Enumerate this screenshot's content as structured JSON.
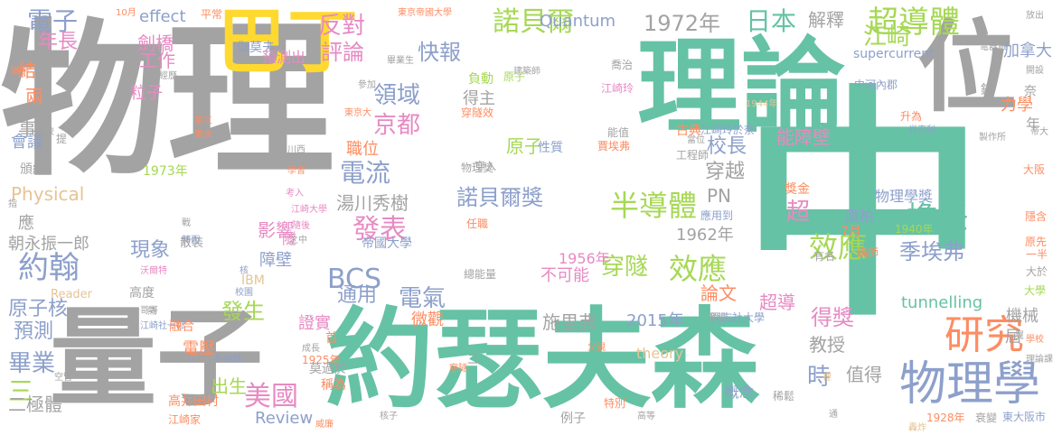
{
  "palette": {
    "gray": "#a3a3a3",
    "green": "#66c2a5",
    "orange": "#fc8d62",
    "blue": "#8da0cb",
    "pink": "#e78ac3",
    "lime": "#a6d854",
    "yellow": "#ffd92f",
    "tan": "#e5c494"
  },
  "words": [
    {
      "text": "物理",
      "color": "gray"
    },
    {
      "text": "中",
      "color": "green"
    },
    {
      "text": "約瑟夫森",
      "color": "green"
    },
    {
      "text": "理論",
      "color": "green"
    },
    {
      "text": "量子",
      "color": "gray"
    },
    {
      "text": "位",
      "color": "gray"
    },
    {
      "text": "巴丁",
      "color": "yellow"
    },
    {
      "text": "物理學",
      "color": "blue"
    },
    {
      "text": "研究",
      "color": "orange"
    },
    {
      "text": "超導體",
      "color": "lime"
    },
    {
      "text": "江崎",
      "color": "lime"
    },
    {
      "text": "諾貝爾",
      "color": "lime"
    },
    {
      "text": "日本",
      "color": "green"
    },
    {
      "text": "1972年",
      "color": "gray"
    },
    {
      "text": "半導體",
      "color": "lime"
    },
    {
      "text": "擔任",
      "color": "green"
    },
    {
      "text": "效應",
      "color": "lime"
    },
    {
      "text": "效應",
      "color": "lime"
    },
    {
      "text": "穿隧",
      "color": "lime"
    },
    {
      "text": "季埃弗",
      "color": "blue"
    },
    {
      "text": "電子",
      "color": "blue"
    },
    {
      "text": "約翰",
      "color": "blue"
    },
    {
      "text": "發表",
      "color": "pink"
    },
    {
      "text": "BCS",
      "color": "blue"
    },
    {
      "text": "評論",
      "color": "pink"
    },
    {
      "text": "快報",
      "color": "blue"
    },
    {
      "text": "反對",
      "color": "pink"
    },
    {
      "text": "Quantum",
      "color": "blue"
    },
    {
      "text": "解釋",
      "color": "gray"
    },
    {
      "text": "領域",
      "color": "blue"
    },
    {
      "text": "京都",
      "color": "pink"
    },
    {
      "text": "電流",
      "color": "blue"
    },
    {
      "text": "諾貝爾獎",
      "color": "blue"
    },
    {
      "text": "湯川秀樹",
      "color": "gray"
    },
    {
      "text": "校長",
      "color": "blue"
    },
    {
      "text": "穿越",
      "color": "gray"
    },
    {
      "text": "能障壁",
      "color": "pink"
    },
    {
      "text": "職位",
      "color": "orange"
    },
    {
      "text": "超",
      "color": "pink"
    },
    {
      "text": "庫柏",
      "color": "blue"
    },
    {
      "text": "7月",
      "color": "orange"
    },
    {
      "text": "物理學獎",
      "color": "blue"
    },
    {
      "text": "得主",
      "color": "gray"
    },
    {
      "text": "原子",
      "color": "lime"
    },
    {
      "text": "通用",
      "color": "blue"
    },
    {
      "text": "電氣",
      "color": "blue"
    },
    {
      "text": "發生",
      "color": "lime"
    },
    {
      "text": "論文",
      "color": "orange"
    },
    {
      "text": "得獎",
      "color": "pink"
    },
    {
      "text": "教授",
      "color": "gray"
    },
    {
      "text": "超導",
      "color": "pink"
    },
    {
      "text": "美國",
      "color": "pink"
    },
    {
      "text": "時",
      "color": "blue"
    },
    {
      "text": "值得",
      "color": "gray"
    },
    {
      "text": "施里弗",
      "color": "gray"
    },
    {
      "text": "2015年",
      "color": "blue"
    },
    {
      "text": "1962年",
      "color": "gray"
    },
    {
      "text": "1956年",
      "color": "pink"
    },
    {
      "text": "不可能",
      "color": "pink"
    },
    {
      "text": "微觀",
      "color": "orange"
    },
    {
      "text": "現象",
      "color": "blue"
    },
    {
      "text": "影響",
      "color": "pink"
    },
    {
      "text": "障壁",
      "color": "blue"
    },
    {
      "text": "朝永振一郎",
      "color": "gray"
    },
    {
      "text": "原子核",
      "color": "blue"
    },
    {
      "text": "畢業",
      "color": "blue"
    },
    {
      "text": "預測",
      "color": "blue"
    },
    {
      "text": "三",
      "color": "lime"
    },
    {
      "text": "二極體",
      "color": "gray"
    },
    {
      "text": "出生",
      "color": "lime"
    },
    {
      "text": "Review",
      "color": "blue"
    },
    {
      "text": "證實",
      "color": "pink"
    },
    {
      "text": "電壓",
      "color": "orange"
    },
    {
      "text": "年長",
      "color": "pink"
    },
    {
      "text": "結",
      "color": "orange"
    },
    {
      "text": "兩",
      "color": "orange"
    },
    {
      "text": "事",
      "color": "gray"
    },
    {
      "text": "會議",
      "color": "blue"
    },
    {
      "text": "Physical",
      "color": "tan"
    },
    {
      "text": "effect",
      "color": "blue"
    },
    {
      "text": "劍橋",
      "color": "pink"
    },
    {
      "text": "工作",
      "color": "pink"
    },
    {
      "text": "粒子",
      "color": "pink"
    },
    {
      "text": "伽莫夫",
      "color": "blue"
    },
    {
      "text": "預測出",
      "color": "pink"
    },
    {
      "text": "supercurrent",
      "color": "blue"
    },
    {
      "text": "加拿大",
      "color": "blue"
    },
    {
      "text": "力學",
      "color": "orange"
    },
    {
      "text": "tunnelling",
      "color": "green"
    },
    {
      "text": "機械",
      "color": "gray"
    },
    {
      "text": "屆",
      "color": "gray"
    },
    {
      "text": "PN",
      "color": "gray"
    },
    {
      "text": "theory",
      "color": "tan"
    },
    {
      "text": "應",
      "color": "gray"
    },
    {
      "text": "隧",
      "color": "pink"
    },
    {
      "text": "年",
      "color": "gray"
    },
    {
      "text": "IBM",
      "color": "tan"
    },
    {
      "text": "平常",
      "color": "orange"
    },
    {
      "text": "10月",
      "color": "orange"
    },
    {
      "text": "東京帝國大學",
      "color": "orange"
    },
    {
      "text": "放出",
      "color": "gray"
    },
    {
      "text": "鍺",
      "color": "gray"
    },
    {
      "text": "奈",
      "color": "gray"
    },
    {
      "text": "古典",
      "color": "orange"
    },
    {
      "text": "江崎玲於奈",
      "color": "blue"
    },
    {
      "text": "江崎玲",
      "color": "pink"
    },
    {
      "text": "負動",
      "color": "lime"
    },
    {
      "text": "喬治",
      "color": "gray"
    },
    {
      "text": "原子",
      "color": "lime"
    },
    {
      "text": "性質",
      "color": "blue"
    },
    {
      "text": "能值",
      "color": "gray"
    },
    {
      "text": "賈埃弗",
      "color": "orange"
    },
    {
      "text": "穿入",
      "color": "gray"
    },
    {
      "text": "穿隧效",
      "color": "orange"
    },
    {
      "text": "物理獎",
      "color": "gray"
    },
    {
      "text": "工程師",
      "color": "gray"
    },
    {
      "text": "當位",
      "color": "gray"
    },
    {
      "text": "1973年",
      "color": "lime"
    },
    {
      "text": "1940年",
      "color": "lime"
    },
    {
      "text": "1928年",
      "color": "orange"
    },
    {
      "text": "1925年",
      "color": "orange"
    },
    {
      "text": "1944年",
      "color": "tan"
    },
    {
      "text": "提",
      "color": "gray"
    },
    {
      "text": "頒給",
      "color": "gray"
    },
    {
      "text": "Reader",
      "color": "tan"
    },
    {
      "text": "高度",
      "color": "gray"
    },
    {
      "text": "首",
      "color": "orange"
    },
    {
      "text": "莫過於",
      "color": "gray"
    },
    {
      "text": "稱為",
      "color": "orange"
    },
    {
      "text": "高井田村",
      "color": "orange"
    },
    {
      "text": "江崎家",
      "color": "orange"
    },
    {
      "text": "概念",
      "color": "blue"
    },
    {
      "text": "特別",
      "color": "orange"
    },
    {
      "text": "例子",
      "color": "gray"
    },
    {
      "text": "稀鬆",
      "color": "gray"
    },
    {
      "text": "裡",
      "color": "tan"
    },
    {
      "text": "帝國大學",
      "color": "blue"
    },
    {
      "text": "總能量",
      "color": "gray"
    },
    {
      "text": "任職",
      "color": "orange"
    },
    {
      "text": "大阪",
      "color": "orange"
    },
    {
      "text": "東大阪市",
      "color": "blue"
    },
    {
      "text": "衰變",
      "color": "gray"
    },
    {
      "text": "隱含",
      "color": "orange"
    },
    {
      "text": "原先",
      "color": "orange"
    },
    {
      "text": "一半",
      "color": "orange"
    },
    {
      "text": "大於",
      "color": "gray"
    },
    {
      "text": "大學",
      "color": "lime"
    },
    {
      "text": "學校",
      "color": "orange"
    },
    {
      "text": "理論課",
      "color": "gray"
    },
    {
      "text": "同志社大學",
      "color": "blue"
    },
    {
      "text": "講師",
      "color": "orange"
    },
    {
      "text": "有名",
      "color": "gray"
    },
    {
      "text": "應用到",
      "color": "blue"
    },
    {
      "text": "升為",
      "color": "orange"
    },
    {
      "text": "肖克利",
      "color": "blue"
    },
    {
      "text": "中河內郡",
      "color": "blue"
    },
    {
      "text": "帝大",
      "color": "gray"
    },
    {
      "text": "製作所",
      "color": "gray"
    },
    {
      "text": "電器廠",
      "color": "gray"
    },
    {
      "text": "開設",
      "color": "gray"
    },
    {
      "text": "獎金",
      "color": "orange"
    },
    {
      "text": "建築師",
      "color": "gray"
    },
    {
      "text": "畢業生",
      "color": "gray"
    },
    {
      "text": "參加",
      "color": "gray"
    },
    {
      "text": "經歷",
      "color": "gray"
    },
    {
      "text": "鑽研",
      "color": "orange"
    },
    {
      "text": "敢鄙",
      "color": "gray"
    },
    {
      "text": "高校",
      "color": "gray"
    },
    {
      "text": "第三",
      "color": "orange"
    },
    {
      "text": "東大",
      "color": "orange"
    },
    {
      "text": "東京大",
      "color": "orange"
    },
    {
      "text": "川西",
      "color": "gray"
    },
    {
      "text": "學習",
      "color": "orange"
    },
    {
      "text": "考入",
      "color": "pink"
    },
    {
      "text": "江崎大學",
      "color": "pink"
    },
    {
      "text": "隨後",
      "color": "pink"
    },
    {
      "text": "之中",
      "color": "gray"
    },
    {
      "text": "戰",
      "color": "gray"
    },
    {
      "text": "轉而",
      "color": "blue"
    },
    {
      "text": "指",
      "color": "gray"
    },
    {
      "text": "散裝",
      "color": "gray"
    },
    {
      "text": "沃爾特",
      "color": "pink"
    },
    {
      "text": "校園",
      "color": "blue"
    },
    {
      "text": "核",
      "color": "blue"
    },
    {
      "text": "熱",
      "color": "gray"
    },
    {
      "text": "江崎社一郎",
      "color": "blue"
    },
    {
      "text": "哥哥",
      "color": "gray"
    },
    {
      "text": "融合",
      "color": "orange"
    },
    {
      "text": "布喇頓",
      "color": "blue"
    },
    {
      "text": "空管",
      "color": "gray"
    },
    {
      "text": "成長",
      "color": "gray"
    },
    {
      "text": "父親",
      "color": "orange"
    },
    {
      "text": "二",
      "color": "gray"
    },
    {
      "text": "穿隧",
      "color": "orange"
    },
    {
      "text": "發明",
      "color": "gray"
    },
    {
      "text": "威廉",
      "color": "orange"
    },
    {
      "text": "核子",
      "color": "gray"
    },
    {
      "text": "轟炸",
      "color": "tan"
    },
    {
      "text": "高等",
      "color": "gray"
    },
    {
      "text": "通",
      "color": "gray"
    },
    {
      "text": "翼",
      "color": "gray"
    }
  ]
}
